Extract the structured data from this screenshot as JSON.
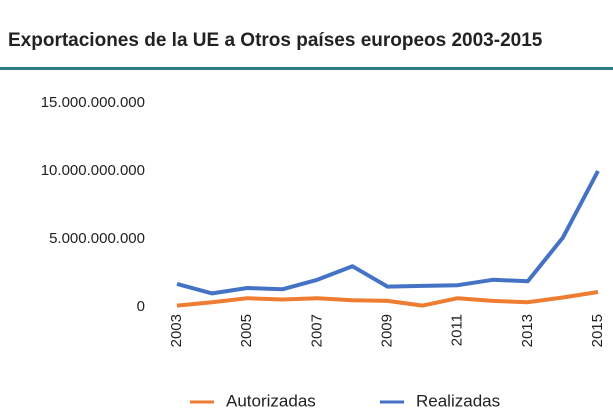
{
  "chart_data": {
    "type": "line",
    "title": "Exportaciones de la UE a Otros países europeos 2003-2015",
    "x": [
      2003,
      2004,
      2005,
      2006,
      2007,
      2008,
      2009,
      2010,
      2011,
      2012,
      2013,
      2014,
      2015
    ],
    "xlim": [
      2003,
      2015
    ],
    "xticks": [
      2003,
      2005,
      2007,
      2009,
      2011,
      2013,
      2015
    ],
    "ylim": [
      0,
      15000000000
    ],
    "yticks": [
      {
        "value": 0,
        "label": "0"
      },
      {
        "value": 5000000000,
        "label": "5.000.000.000"
      },
      {
        "value": 10000000000,
        "label": "10.000.000.000"
      },
      {
        "value": 15000000000,
        "label": "15.000.000.000"
      }
    ],
    "grid": false,
    "legend": "bottom",
    "series": [
      {
        "name": "Autorizadas",
        "color": "#ee7d31",
        "values": [
          100000000,
          350000000,
          650000000,
          550000000,
          650000000,
          500000000,
          450000000,
          100000000,
          650000000,
          450000000,
          350000000,
          700000000,
          1100000000
        ]
      },
      {
        "name": "Realizadas",
        "color": "#4472c4",
        "values": [
          1700000000,
          1000000000,
          1400000000,
          1300000000,
          2000000000,
          3000000000,
          1500000000,
          1550000000,
          1600000000,
          2000000000,
          1900000000,
          5100000000,
          10000000000
        ]
      }
    ]
  }
}
